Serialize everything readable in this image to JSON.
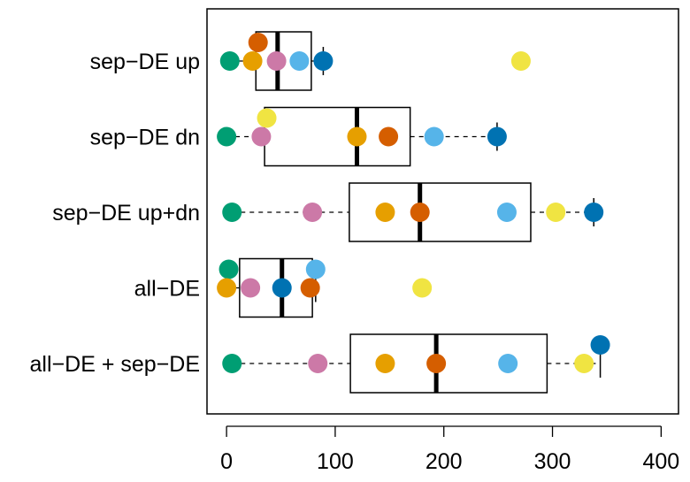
{
  "chart_data": {
    "type": "boxplot",
    "orientation": "horizontal",
    "title": "",
    "xlabel": "",
    "ylabel": "",
    "xlim": [
      -18,
      416
    ],
    "x_ticks": [
      0,
      100,
      200,
      300,
      400
    ],
    "x_tick_labels": [
      "0",
      "100",
      "200",
      "300",
      "400"
    ],
    "grid": false,
    "legend": "none",
    "categories": [
      {
        "label": "sep−DE up",
        "box": {
          "whisker_low": 3,
          "q1": 27,
          "median": 47,
          "q3": 78,
          "whisker_high": 89
        },
        "points": [
          {
            "value": 29,
            "color": "#D55E00",
            "offset": "up"
          },
          {
            "value": 3,
            "color": "#009E73",
            "offset": "center"
          },
          {
            "value": 24,
            "color": "#E69F00",
            "offset": "center"
          },
          {
            "value": 46,
            "color": "#CC79A7",
            "offset": "center"
          },
          {
            "value": 67,
            "color": "#56B4E9",
            "offset": "center"
          },
          {
            "value": 89,
            "color": "#0072B2",
            "offset": "center"
          },
          {
            "value": 271,
            "color": "#F0E442",
            "offset": "center"
          }
        ]
      },
      {
        "label": "sep−DE dn",
        "box": {
          "whisker_low": 0,
          "q1": 35,
          "median": 120,
          "q3": 169,
          "whisker_high": 249
        },
        "points": [
          {
            "value": 37,
            "color": "#F0E442",
            "offset": "up"
          },
          {
            "value": 0,
            "color": "#009E73",
            "offset": "center"
          },
          {
            "value": 32,
            "color": "#CC79A7",
            "offset": "center"
          },
          {
            "value": 120,
            "color": "#E69F00",
            "offset": "center"
          },
          {
            "value": 149,
            "color": "#D55E00",
            "offset": "center"
          },
          {
            "value": 191,
            "color": "#56B4E9",
            "offset": "center"
          },
          {
            "value": 249,
            "color": "#0072B2",
            "offset": "center"
          }
        ]
      },
      {
        "label": "sep−DE up+dn",
        "box": {
          "whisker_low": 5,
          "q1": 113,
          "median": 178,
          "q3": 280,
          "whisker_high": 338
        },
        "points": [
          {
            "value": 5,
            "color": "#009E73",
            "offset": "center"
          },
          {
            "value": 79,
            "color": "#CC79A7",
            "offset": "center"
          },
          {
            "value": 146,
            "color": "#E69F00",
            "offset": "center"
          },
          {
            "value": 178,
            "color": "#D55E00",
            "offset": "center"
          },
          {
            "value": 258,
            "color": "#56B4E9",
            "offset": "center"
          },
          {
            "value": 303,
            "color": "#F0E442",
            "offset": "center"
          },
          {
            "value": 338,
            "color": "#0072B2",
            "offset": "center"
          }
        ]
      },
      {
        "label": "all−DE",
        "box": {
          "whisker_low": 0,
          "q1": 12,
          "median": 51,
          "q3": 79,
          "whisker_high": 82
        },
        "points": [
          {
            "value": 2,
            "color": "#009E73",
            "offset": "up"
          },
          {
            "value": 82,
            "color": "#56B4E9",
            "offset": "up"
          },
          {
            "value": 0,
            "color": "#E69F00",
            "offset": "center"
          },
          {
            "value": 22,
            "color": "#CC79A7",
            "offset": "center"
          },
          {
            "value": 51,
            "color": "#0072B2",
            "offset": "center"
          },
          {
            "value": 77,
            "color": "#D55E00",
            "offset": "center"
          },
          {
            "value": 180,
            "color": "#F0E442",
            "offset": "center"
          }
        ]
      },
      {
        "label": "all−DE + sep−DE",
        "box": {
          "whisker_low": 5,
          "q1": 114,
          "median": 193,
          "q3": 295,
          "whisker_high": 344
        },
        "points": [
          {
            "value": 344,
            "color": "#0072B2",
            "offset": "up"
          },
          {
            "value": 5,
            "color": "#009E73",
            "offset": "center"
          },
          {
            "value": 84,
            "color": "#CC79A7",
            "offset": "center"
          },
          {
            "value": 146,
            "color": "#E69F00",
            "offset": "center"
          },
          {
            "value": 193,
            "color": "#D55E00",
            "offset": "center"
          },
          {
            "value": 259,
            "color": "#56B4E9",
            "offset": "center"
          },
          {
            "value": 329,
            "color": "#F0E442",
            "offset": "center"
          }
        ]
      }
    ]
  }
}
